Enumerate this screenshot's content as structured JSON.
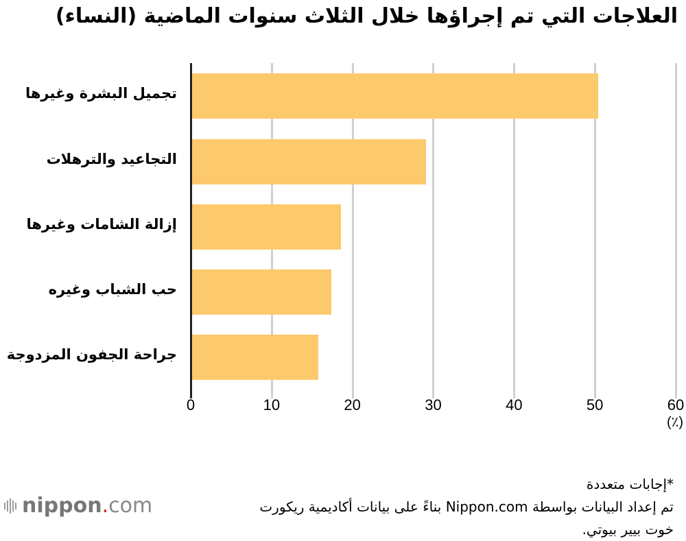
{
  "title": "العلاجات التي تم إجراؤها خلال الثلاث سنوات الماضية (النساء)",
  "chart_data": {
    "type": "bar",
    "orientation": "horizontal",
    "title": "العلاجات التي تم إجراؤها خلال الثلاث سنوات الماضية (النساء)",
    "categories": [
      "تجميل البشرة وغيرها",
      "التجاعيد والترهلات",
      "إزالة الشامات وغيرها",
      "حب الشباب وغيره",
      "جراحة الجفون المزدوجة"
    ],
    "values": [
      50.4,
      29.1,
      18.6,
      17.4,
      15.8
    ],
    "xlabel": "(٪)",
    "ylabel": "",
    "xlim": [
      0,
      60
    ],
    "xticks": [
      "0",
      "10",
      "20",
      "30",
      "40",
      "50",
      "60"
    ],
    "grid": true,
    "bar_color": "#fcc96d",
    "legend": null
  },
  "axis": {
    "unit": "(٪)"
  },
  "notes": {
    "line1": "*إجابات متعددة",
    "line2": "تم إعداد البيانات بواسطة Nippon.com بناءً على بيانات أكاديمية ريكورت",
    "line3": "خوت بيير بيوتي."
  },
  "logo": {
    "name": "nippon",
    "dot": ".",
    "suffix": "com"
  }
}
